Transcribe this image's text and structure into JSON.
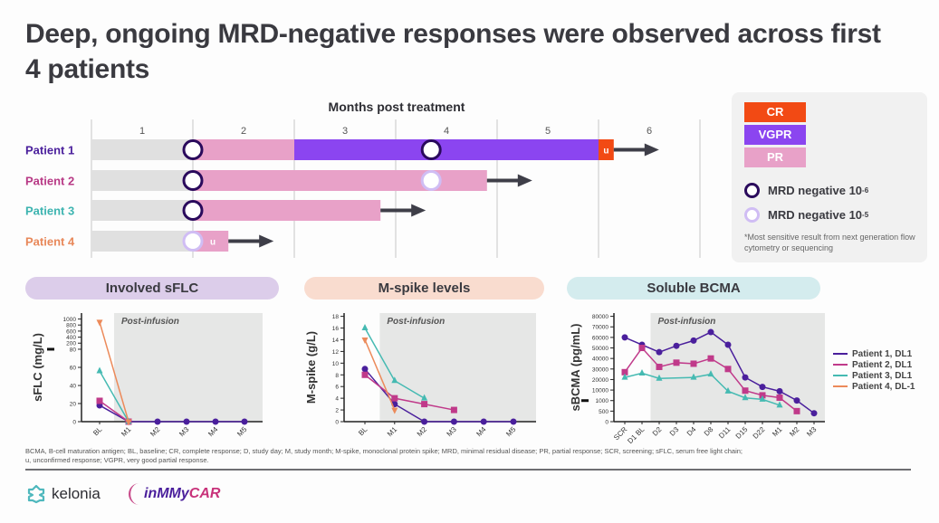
{
  "title": "Deep, ongoing MRD-negative responses were observed across first 4 patients",
  "swimlane": {
    "axis_title": "Months post treatment",
    "months": [
      "1",
      "2",
      "3",
      "4",
      "5",
      "6"
    ],
    "colors": {
      "screening": "#e0e0e0",
      "PR": "#e8a1c8",
      "VGPR": "#8b45f0",
      "CR": "#f24a14",
      "arrow": "#3e3e48",
      "mrd6": "#2a0a5c",
      "mrd5": "#d0bdf4"
    },
    "patients": [
      {
        "label": "Patient 1",
        "color": "#4a1f9c",
        "end_month": 5.05,
        "segments": [
          {
            "type": "screening",
            "from": 0,
            "to": 1
          },
          {
            "type": "PR",
            "from": 1,
            "to": 2
          },
          {
            "type": "VGPR",
            "from": 2,
            "to": 5.0
          },
          {
            "type": "CR",
            "from": 5.0,
            "to": 5.15,
            "label": "u"
          }
        ],
        "mrd": [
          {
            "month": 1,
            "level": "10^-6"
          },
          {
            "month": 3.35,
            "level": "10^-6"
          }
        ]
      },
      {
        "label": "Patient 2",
        "color": "#b83a86",
        "end_month": 3.7,
        "segments": [
          {
            "type": "screening",
            "from": 0,
            "to": 1
          },
          {
            "type": "PR",
            "from": 1,
            "to": 3.9
          }
        ],
        "mrd": [
          {
            "month": 1,
            "level": "10^-6"
          },
          {
            "month": 3.35,
            "level": "10^-5"
          }
        ]
      },
      {
        "label": "Patient 3",
        "color": "#3db4b0",
        "end_month": 2.7,
        "segments": [
          {
            "type": "screening",
            "from": 0,
            "to": 1
          },
          {
            "type": "PR",
            "from": 1,
            "to": 2.85
          }
        ],
        "mrd": [
          {
            "month": 1,
            "level": "10^-6"
          }
        ]
      },
      {
        "label": "Patient 4",
        "color": "#e8885a",
        "segments": [
          {
            "type": "screening",
            "from": 0,
            "to": 1
          },
          {
            "type": "PR",
            "from": 1,
            "to": 1.35,
            "label": "u"
          }
        ],
        "mrd": [
          {
            "month": 1,
            "level": "10^-5"
          }
        ]
      }
    ]
  },
  "legend": {
    "responses": [
      {
        "label": "CR",
        "color": "#f24a14"
      },
      {
        "label": "VGPR",
        "color": "#8b45f0"
      },
      {
        "label": "PR",
        "color": "#e8a1c8"
      }
    ],
    "mrd6_label": "MRD negative 10",
    "mrd6_exp": "-6",
    "mrd5_label": "MRD negative 10",
    "mrd5_exp": "-5",
    "footnote": "*Most sensitive result from next generation flow cytometry or sequencing"
  },
  "panels": {
    "sflc_title": "Involved sFLC",
    "mspike_title": "M-spike levels",
    "bcma_title": "Soluble BCMA",
    "post_infusion": "Post-infusion"
  },
  "chart_data": [
    {
      "type": "line",
      "title": "Involved sFLC",
      "ylabel": "sFLC (mg/L)",
      "xlabel": "",
      "categories": [
        "BL",
        "M1",
        "M2",
        "M3",
        "M4",
        "M5"
      ],
      "y_ticks": [
        0,
        20,
        40,
        60,
        80,
        200,
        400,
        600,
        800,
        1000
      ],
      "axis_break": "80",
      "shaded_region": "Post-infusion (M1 onward)",
      "series": [
        {
          "name": "Patient 1, DL1",
          "color": "#4a1f9c",
          "marker": "circle",
          "values": [
            18,
            0,
            0,
            0,
            0,
            0
          ]
        },
        {
          "name": "Patient 2, DL1",
          "color": "#c03a8a",
          "marker": "square",
          "values": [
            23,
            0,
            null,
            null,
            null,
            null
          ]
        },
        {
          "name": "Patient 3, DL1",
          "color": "#45bab2",
          "marker": "triangle-up",
          "values": [
            56,
            0,
            null,
            null,
            null,
            null
          ]
        },
        {
          "name": "Patient 4, DL-1",
          "color": "#ec8a5a",
          "marker": "triangle-down",
          "values": [
            900,
            0,
            null,
            null,
            null,
            null
          ]
        }
      ]
    },
    {
      "type": "line",
      "title": "M-spike levels",
      "ylabel": "M-spike (g/L)",
      "xlabel": "",
      "categories": [
        "BL",
        "M1",
        "M2",
        "M3",
        "M4",
        "M5"
      ],
      "y_ticks": [
        0,
        2,
        4,
        6,
        8,
        10,
        12,
        14,
        16,
        18
      ],
      "ylim": [
        0,
        18
      ],
      "shaded_region": "Post-infusion (M1 onward)",
      "series": [
        {
          "name": "Patient 1, DL1",
          "color": "#4a1f9c",
          "marker": "circle",
          "values": [
            9,
            3,
            0,
            0,
            0,
            0
          ]
        },
        {
          "name": "Patient 2, DL1",
          "color": "#c03a8a",
          "marker": "square",
          "values": [
            8,
            4,
            3,
            2,
            null,
            null
          ]
        },
        {
          "name": "Patient 3, DL1",
          "color": "#45bab2",
          "marker": "triangle-up",
          "values": [
            16,
            7,
            4,
            null,
            null,
            null
          ]
        },
        {
          "name": "Patient 4, DL-1",
          "color": "#ec8a5a",
          "marker": "triangle-down",
          "values": [
            14,
            2,
            null,
            null,
            null,
            null
          ]
        }
      ]
    },
    {
      "type": "line",
      "title": "Soluble BCMA",
      "ylabel": "sBCMA (pg/mL)",
      "xlabel": "",
      "categories": [
        "SCR",
        "D1 BL",
        "D2",
        "D3",
        "D4",
        "D8",
        "D11",
        "D15",
        "D22",
        "M1",
        "M2",
        "M3"
      ],
      "y_ticks": [
        0,
        500,
        1000,
        10000,
        20000,
        30000,
        40000,
        50000,
        60000,
        70000,
        80000
      ],
      "axis_break": "1000",
      "shaded_region": "Post-infusion (D2 onward)",
      "legend_position": "right",
      "series": [
        {
          "name": "Patient 1, DL1",
          "color": "#4a1f9c",
          "marker": "circle",
          "values": [
            60000,
            53000,
            46000,
            52000,
            57000,
            65000,
            53000,
            22000,
            13000,
            9000,
            1100,
            400
          ]
        },
        {
          "name": "Patient 2, DL1",
          "color": "#c03a8a",
          "marker": "square",
          "values": [
            27000,
            50000,
            32000,
            36000,
            35000,
            40000,
            30000,
            9500,
            5500,
            3500,
            500,
            null
          ]
        },
        {
          "name": "Patient 3, DL1",
          "color": "#45bab2",
          "marker": "triangle-up",
          "values": [
            22000,
            26000,
            21000,
            null,
            22000,
            25000,
            9000,
            3300,
            2000,
            780,
            null,
            null
          ]
        }
      ]
    }
  ],
  "chart_legend": [
    {
      "label": "Patient 1, DL1",
      "color": "#4a1f9c"
    },
    {
      "label": "Patient 2, DL1",
      "color": "#c03a8a"
    },
    {
      "label": "Patient 3, DL1",
      "color": "#45bab2"
    },
    {
      "label": "Patient 4, DL-1",
      "color": "#ec8a5a"
    }
  ],
  "abbreviations_line1": "BCMA, B-cell maturation antigen; BL, baseline; CR, complete response; D, study day; M, study month; M-spike, monoclonal protein spike; MRD, minimal residual disease; PR, partial response; SCR, screening; sFLC, serum free light chain;",
  "abbreviations_line2": "u, unconfirmed response; VGPR, very good partial response.",
  "logos": {
    "kelonia": "kelonia",
    "car_prefix": "inMMy",
    "car_suffix": "CAR"
  }
}
